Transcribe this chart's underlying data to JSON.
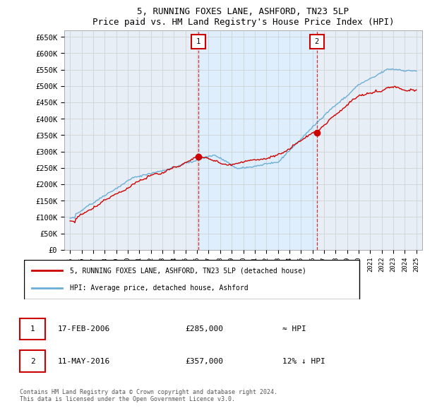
{
  "title": "5, RUNNING FOXES LANE, ASHFORD, TN23 5LP",
  "subtitle": "Price paid vs. HM Land Registry's House Price Index (HPI)",
  "ylabel_ticks": [
    "£0",
    "£50K",
    "£100K",
    "£150K",
    "£200K",
    "£250K",
    "£300K",
    "£350K",
    "£400K",
    "£450K",
    "£500K",
    "£550K",
    "£600K",
    "£650K"
  ],
  "ytick_values": [
    0,
    50000,
    100000,
    150000,
    200000,
    250000,
    300000,
    350000,
    400000,
    450000,
    500000,
    550000,
    600000,
    650000
  ],
  "ylim": [
    0,
    670000
  ],
  "xmin": 1994.5,
  "xmax": 2025.5,
  "hpi_color": "#6baed6",
  "price_color": "#cc0000",
  "shade_color": "#ddeeff",
  "marker1_x": 2006.12,
  "marker1_y": 285000,
  "marker2_x": 2016.36,
  "marker2_y": 357000,
  "legend_label1": "5, RUNNING FOXES LANE, ASHFORD, TN23 5LP (detached house)",
  "legend_label2": "HPI: Average price, detached house, Ashford",
  "annotation1_date": "17-FEB-2006",
  "annotation1_price": "£285,000",
  "annotation1_hpi": "≈ HPI",
  "annotation2_date": "11-MAY-2016",
  "annotation2_price": "£357,000",
  "annotation2_hpi": "12% ↓ HPI",
  "footnote": "Contains HM Land Registry data © Crown copyright and database right 2024.\nThis data is licensed under the Open Government Licence v3.0.",
  "bg_color": "#ffffff",
  "grid_color": "#cccccc",
  "plot_bg": "#e8eef5"
}
